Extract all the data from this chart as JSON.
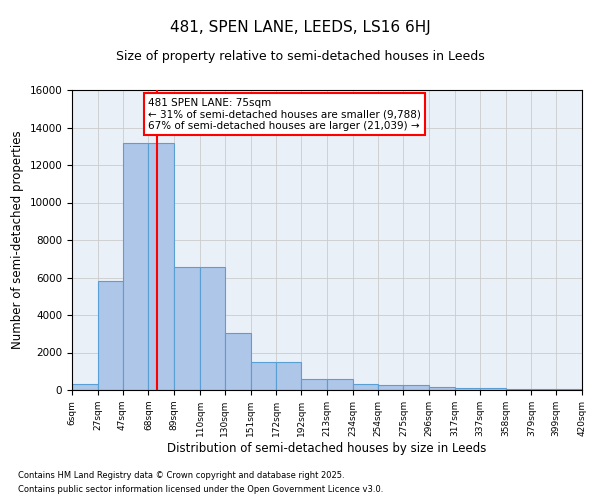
{
  "title": "481, SPEN LANE, LEEDS, LS16 6HJ",
  "subtitle": "Size of property relative to semi-detached houses in Leeds",
  "xlabel": "Distribution of semi-detached houses by size in Leeds",
  "ylabel": "Number of semi-detached properties",
  "footnote1": "Contains HM Land Registry data © Crown copyright and database right 2025.",
  "footnote2": "Contains public sector information licensed under the Open Government Licence v3.0.",
  "annotation_title": "481 SPEN LANE: 75sqm",
  "annotation_line1": "← 31% of semi-detached houses are smaller (9,788)",
  "annotation_line2": "67% of semi-detached houses are larger (21,039) →",
  "property_size": 75,
  "bin_edges": [
    6,
    27,
    47,
    68,
    89,
    110,
    130,
    151,
    172,
    192,
    213,
    234,
    254,
    275,
    296,
    317,
    337,
    358,
    379,
    399,
    420
  ],
  "bar_values": [
    300,
    5800,
    13200,
    13200,
    6550,
    6550,
    3050,
    1500,
    1500,
    600,
    600,
    300,
    250,
    250,
    150,
    100,
    100,
    75,
    50,
    50
  ],
  "bar_color": "#aec6e8",
  "bar_edge_color": "#5a9fd4",
  "vline_color": "#ff0000",
  "vline_x": 75,
  "ylim": [
    0,
    16000
  ],
  "yticks": [
    0,
    2000,
    4000,
    6000,
    8000,
    10000,
    12000,
    14000,
    16000
  ],
  "grid_color": "#cccccc",
  "background_color": "#eaf0f8",
  "title_fontsize": 11,
  "subtitle_fontsize": 9,
  "annotation_fontsize": 7.5,
  "axis_label_fontsize": 8.5,
  "ytick_fontsize": 7.5,
  "xtick_fontsize": 6.5
}
